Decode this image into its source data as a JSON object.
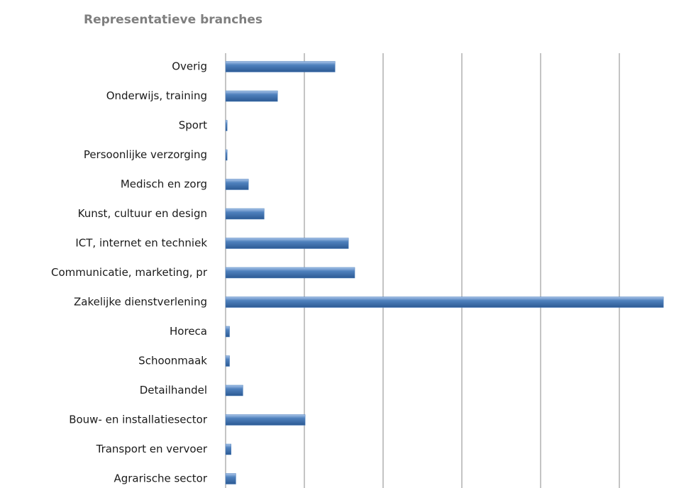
{
  "chart_data": {
    "type": "barh",
    "title": "Representatieve branches",
    "categories": [
      "Overig",
      "Onderwijs, training",
      "Sport",
      "Persoonlijke verzorging",
      "Medisch en zorg",
      "Kunst, cultuur en design",
      "ICT, internet en techniek",
      "Communicatie, marketing,  pr",
      "Zakelijke dienstverlening",
      "Horeca",
      "Schoonmaak",
      "Detailhandel",
      "Bouw- en installatiesector",
      "Transport en vervoer",
      "Agrarische sector"
    ],
    "values": [
      1.39,
      0.66,
      0.02,
      0.02,
      0.29,
      0.49,
      1.56,
      1.64,
      5.56,
      0.05,
      0.05,
      0.22,
      1.01,
      0.07,
      0.13
    ],
    "color": "#4f81bd",
    "xlim": [
      0,
      5.6
    ],
    "xticks": [
      0,
      1,
      2,
      3,
      4,
      5
    ],
    "grid": true
  }
}
